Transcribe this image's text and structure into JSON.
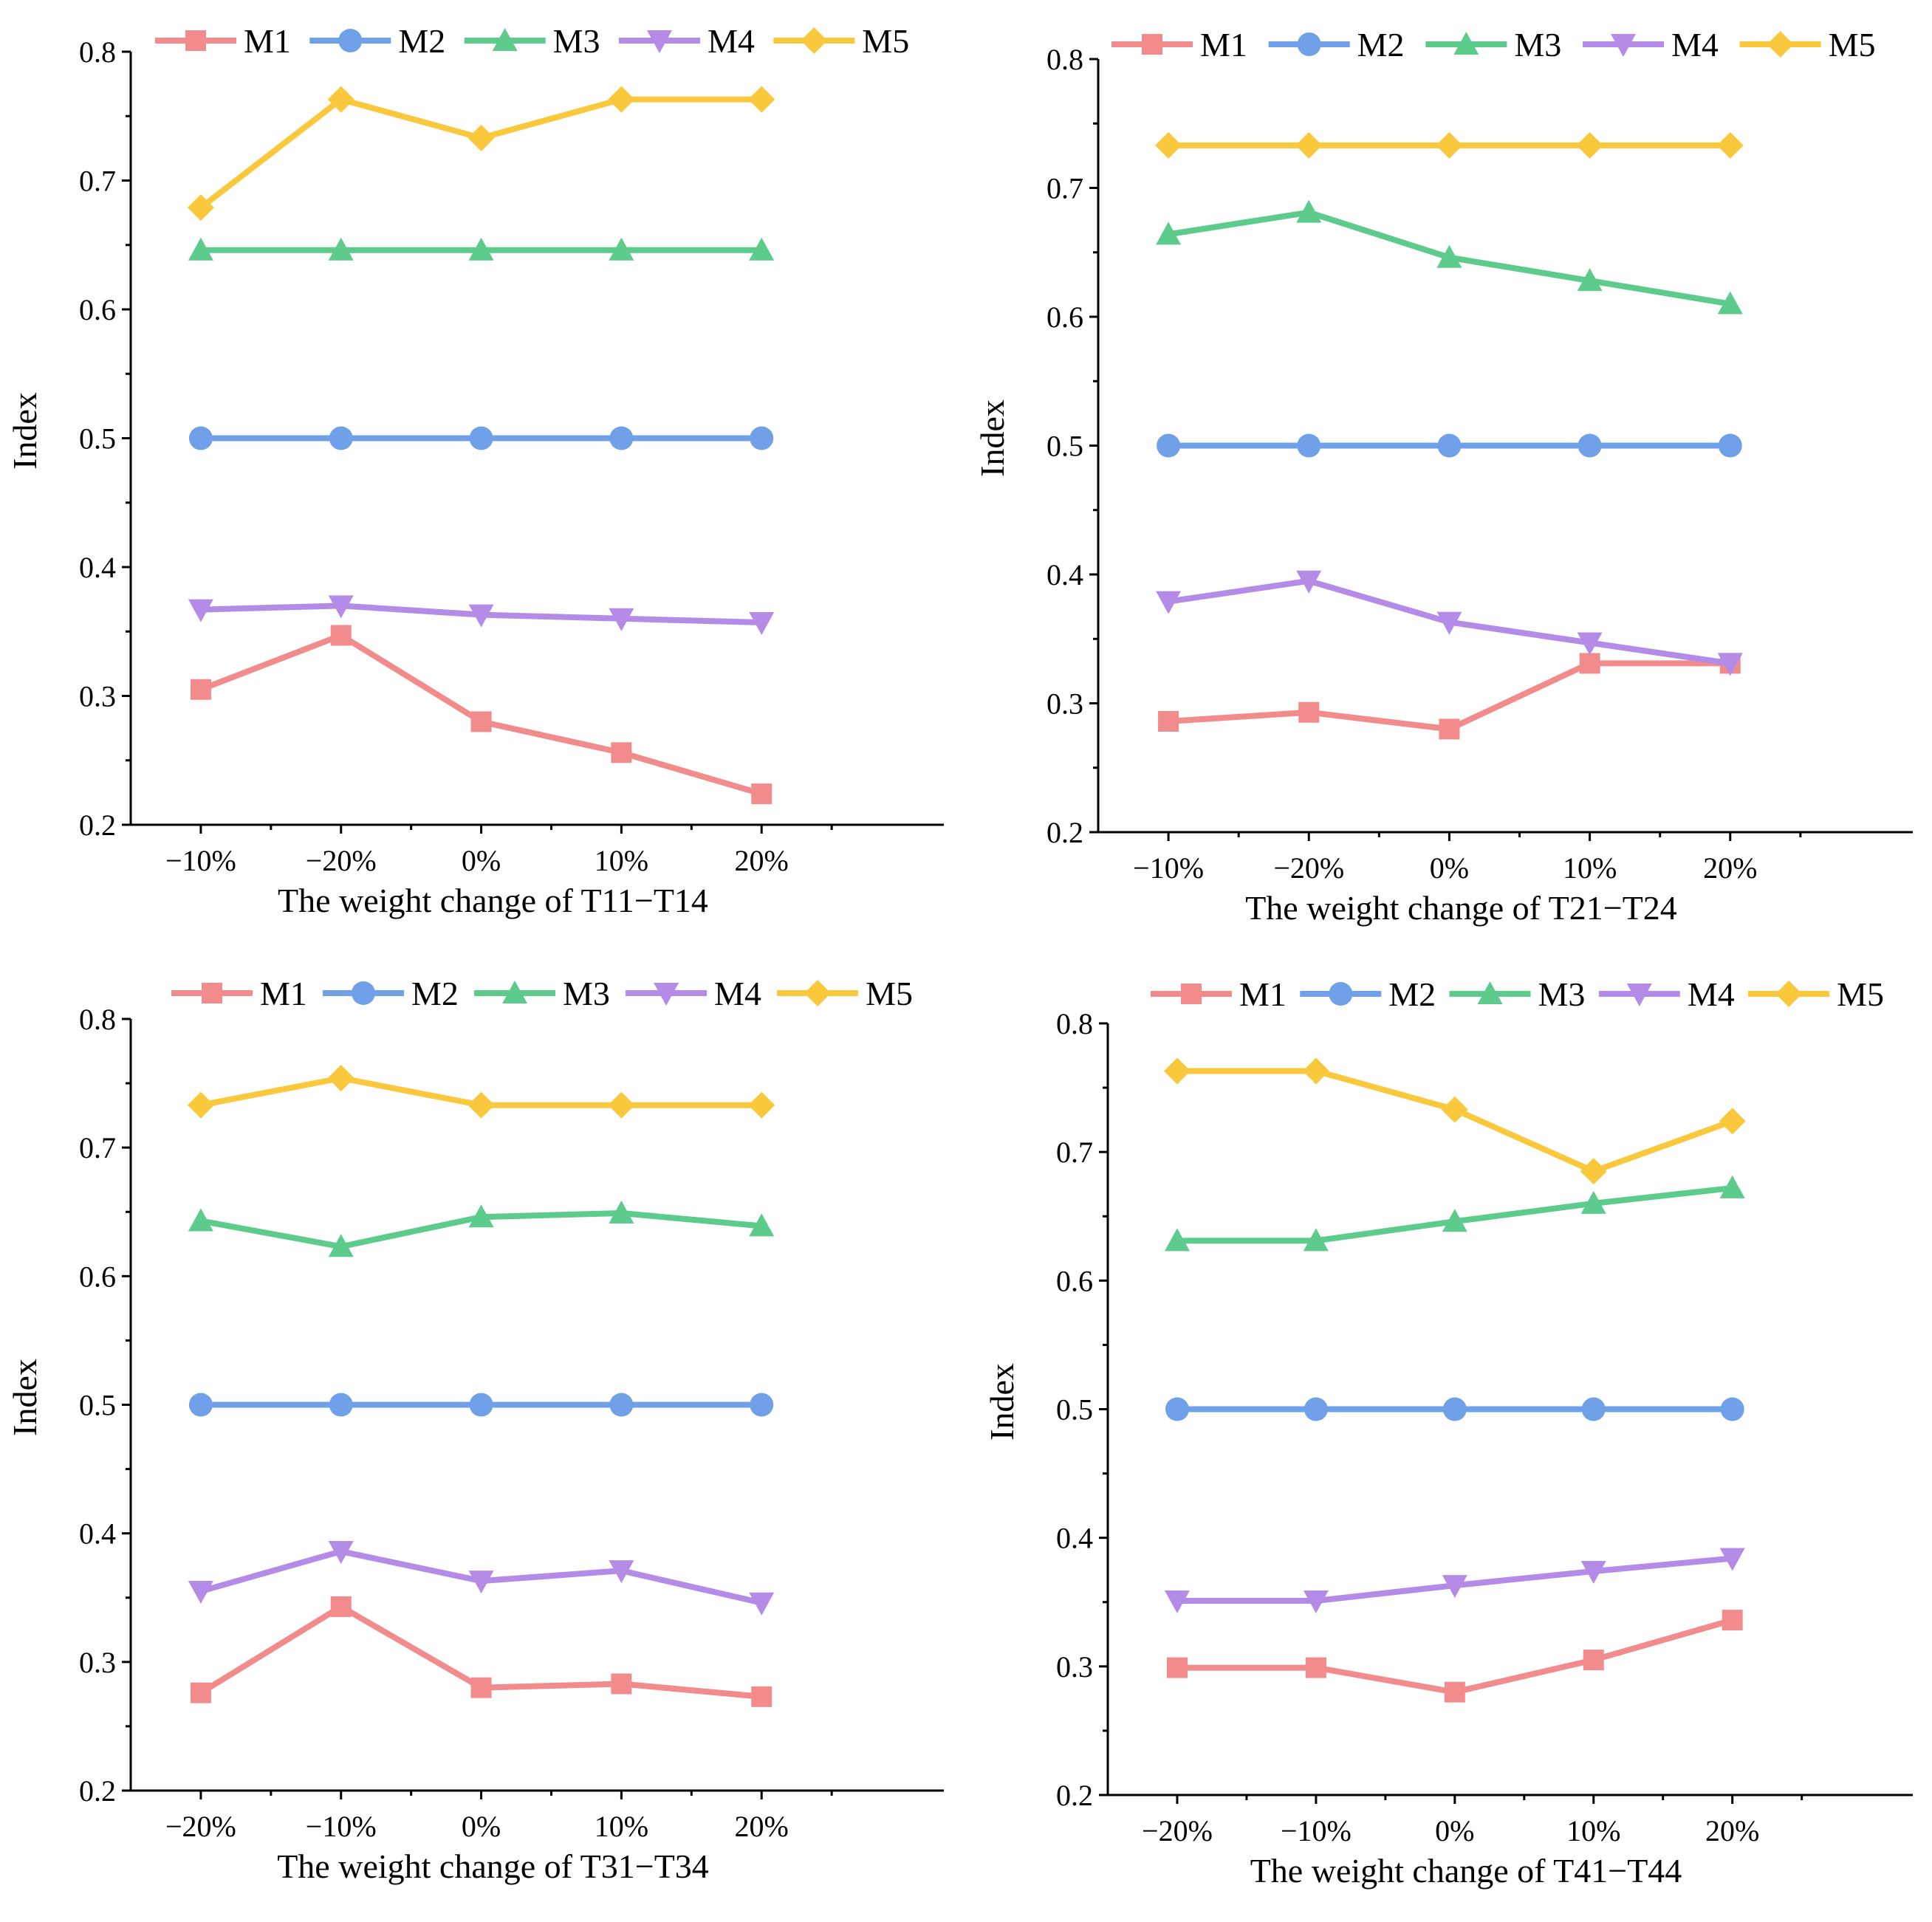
{
  "series_styles": [
    {
      "name": "M1",
      "color": "#F28B8B",
      "marker": "square"
    },
    {
      "name": "M2",
      "color": "#6FA0E8",
      "marker": "circle"
    },
    {
      "name": "M3",
      "color": "#5CCB8C",
      "marker": "triangle-up"
    },
    {
      "name": "M4",
      "color": "#B48CE8",
      "marker": "triangle-down"
    },
    {
      "name": "M5",
      "color": "#FAC83C",
      "marker": "diamond"
    }
  ],
  "chart_data": [
    {
      "type": "line",
      "position": "top-left",
      "categories": [
        "−10%",
        "−20%",
        "0%",
        "10%",
        "20%"
      ],
      "xlabel": "The weight change of T11−T14",
      "ylabel": "Index",
      "ylim": [
        0.2,
        0.8
      ],
      "yticks": [
        "0.2",
        "0.3",
        "0.4",
        "0.5",
        "0.6",
        "0.7",
        "0.8"
      ],
      "legend": [
        "M1",
        "M2",
        "M3",
        "M4",
        "M5"
      ],
      "series": [
        {
          "name": "M1",
          "values": [
            0.305,
            0.347,
            0.28,
            0.256,
            0.224
          ]
        },
        {
          "name": "M2",
          "values": [
            0.5,
            0.5,
            0.5,
            0.5,
            0.5
          ]
        },
        {
          "name": "M3",
          "values": [
            0.646,
            0.646,
            0.646,
            0.646,
            0.646
          ]
        },
        {
          "name": "M4",
          "values": [
            0.367,
            0.37,
            0.363,
            0.36,
            0.357
          ]
        },
        {
          "name": "M5",
          "values": [
            0.679,
            0.763,
            0.733,
            0.763,
            0.763
          ]
        }
      ]
    },
    {
      "type": "line",
      "position": "top-right",
      "categories": [
        "−10%",
        "−20%",
        "0%",
        "10%",
        "20%"
      ],
      "xlabel": "The weight change of T21−T24",
      "ylabel": "Index",
      "ylim": [
        0.2,
        0.8
      ],
      "yticks": [
        "0.2",
        "0.3",
        "0.4",
        "0.5",
        "0.6",
        "0.7",
        "0.8"
      ],
      "legend": [
        "M1",
        "M2",
        "M3",
        "M4",
        "M5"
      ],
      "series": [
        {
          "name": "M1",
          "values": [
            0.286,
            0.293,
            0.28,
            0.331,
            0.331
          ]
        },
        {
          "name": "M2",
          "values": [
            0.5,
            0.5,
            0.5,
            0.5,
            0.5
          ]
        },
        {
          "name": "M3",
          "values": [
            0.664,
            0.681,
            0.646,
            0.628,
            0.61
          ]
        },
        {
          "name": "M4",
          "values": [
            0.379,
            0.395,
            0.363,
            0.347,
            0.331
          ]
        },
        {
          "name": "M5",
          "values": [
            0.733,
            0.733,
            0.733,
            0.733,
            0.733
          ]
        }
      ]
    },
    {
      "type": "line",
      "position": "bottom-left",
      "categories": [
        "−20%",
        "−10%",
        "0%",
        "10%",
        "20%"
      ],
      "xlabel": "The weight change of T31−T34",
      "ylabel": "Index",
      "ylim": [
        0.2,
        0.8
      ],
      "yticks": [
        "0.2",
        "0.3",
        "0.4",
        "0.5",
        "0.6",
        "0.7",
        "0.8"
      ],
      "legend": [
        "M1",
        "M2",
        "M3",
        "M4",
        "M5"
      ],
      "series": [
        {
          "name": "M1",
          "values": [
            0.276,
            0.343,
            0.28,
            0.283,
            0.273
          ]
        },
        {
          "name": "M2",
          "values": [
            0.5,
            0.5,
            0.5,
            0.5,
            0.5
          ]
        },
        {
          "name": "M3",
          "values": [
            0.643,
            0.623,
            0.646,
            0.649,
            0.639
          ]
        },
        {
          "name": "M4",
          "values": [
            0.355,
            0.386,
            0.363,
            0.371,
            0.346
          ]
        },
        {
          "name": "M5",
          "values": [
            0.733,
            0.754,
            0.733,
            0.733,
            0.733
          ]
        }
      ]
    },
    {
      "type": "line",
      "position": "bottom-right",
      "categories": [
        "−20%",
        "−10%",
        "0%",
        "10%",
        "20%"
      ],
      "xlabel": "The weight change of T41−T44",
      "ylabel": "Index",
      "ylim": [
        0.2,
        0.8
      ],
      "yticks": [
        "0.2",
        "0.3",
        "0.4",
        "0.5",
        "0.6",
        "0.7",
        "0.8"
      ],
      "legend": [
        "M1",
        "M2",
        "M3",
        "M4",
        "M5"
      ],
      "series": [
        {
          "name": "M1",
          "values": [
            0.299,
            0.299,
            0.28,
            0.305,
            0.336
          ]
        },
        {
          "name": "M2",
          "values": [
            0.5,
            0.5,
            0.5,
            0.5,
            0.5
          ]
        },
        {
          "name": "M3",
          "values": [
            0.631,
            0.631,
            0.646,
            0.66,
            0.672
          ]
        },
        {
          "name": "M4",
          "values": [
            0.351,
            0.351,
            0.363,
            0.374,
            0.384
          ]
        },
        {
          "name": "M5",
          "values": [
            0.763,
            0.763,
            0.733,
            0.685,
            0.724
          ]
        }
      ]
    }
  ]
}
